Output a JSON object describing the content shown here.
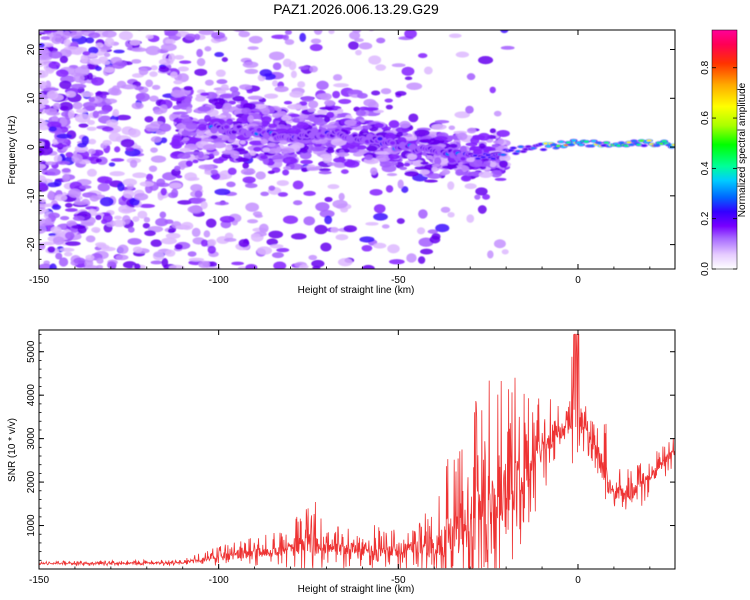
{
  "title": "PAZ1.2026.006.13.29.G29",
  "chart_data": [
    {
      "type": "heatmap",
      "xlabel": "Height of straight line (km)",
      "ylabel": "Frequency (Hz)",
      "xlim": [
        -150,
        27
      ],
      "ylim": [
        -25,
        24
      ],
      "xticks": [
        "-150",
        "-100",
        "-50",
        "0"
      ],
      "yticks": [
        "20",
        "10",
        "0",
        "-10",
        "-20"
      ],
      "ridge": {
        "x": [
          -100,
          -90,
          -80,
          -70,
          -60,
          -50,
          -40,
          -30,
          -25,
          -20,
          -10,
          0,
          10,
          20,
          27
        ],
        "freq": [
          4,
          3,
          2,
          3,
          2,
          0,
          -1,
          -2,
          -2,
          -1,
          0,
          1,
          0.5,
          1,
          0.5
        ]
      },
      "colorbar": {
        "label": "Normalized spectral amplitude",
        "range": [
          0,
          0.95
        ],
        "ticks": [
          "0.0",
          "0.2",
          "0.4",
          "0.6",
          "0.8"
        ]
      }
    },
    {
      "type": "line",
      "xlabel": "Height of straight line (km)",
      "ylabel": "SNR (10 * v/v)",
      "xlim": [
        -150,
        27
      ],
      "ylim": [
        0,
        5500
      ],
      "xticks": [
        "-150",
        "-100",
        "-50",
        "0"
      ],
      "yticks": [
        "5000",
        "4000",
        "3000",
        "2000",
        "1000"
      ],
      "line_color": "#ee3333",
      "envelope": {
        "x": [
          -150,
          -110,
          -100,
          -90,
          -80,
          -75,
          -70,
          -60,
          -50,
          -40,
          -35,
          -30,
          -25,
          -20,
          -15,
          -10,
          -5,
          0,
          2,
          5,
          8,
          10,
          15,
          20,
          27
        ],
        "base": [
          120,
          140,
          280,
          350,
          420,
          650,
          450,
          450,
          380,
          550,
          800,
          1200,
          1600,
          1700,
          2200,
          2700,
          3200,
          3600,
          3200,
          2800,
          2000,
          1800,
          1700,
          2100,
          2700
        ],
        "spike": [
          60,
          80,
          250,
          380,
          500,
          1300,
          450,
          700,
          500,
          900,
          2200,
          2600,
          3000,
          3000,
          2000,
          1200,
          900,
          1800,
          600,
          700,
          1400,
          600,
          700,
          500,
          400
        ]
      }
    }
  ]
}
